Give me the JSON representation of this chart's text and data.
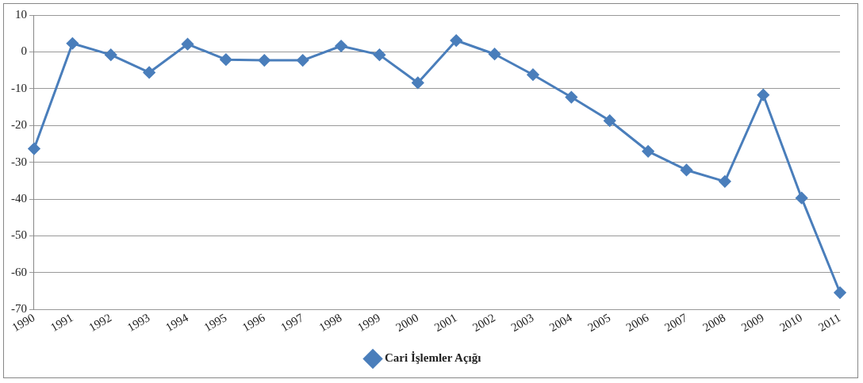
{
  "chart_data": {
    "type": "line",
    "categories": [
      "1990",
      "1991",
      "1992",
      "1993",
      "1994",
      "1995",
      "1996",
      "1997",
      "1998",
      "1999",
      "2000",
      "2001",
      "2002",
      "2003",
      "2004",
      "2005",
      "2006",
      "2007",
      "2008",
      "2009",
      "2010",
      "2011"
    ],
    "series": [
      {
        "name": "Cari İşlemler Açığı",
        "color": "#4a7ebb",
        "values": [
          -26.3,
          2.3,
          -0.8,
          -5.6,
          2.1,
          -2.1,
          -2.3,
          -2.3,
          1.6,
          -0.8,
          -8.4,
          3.1,
          -0.6,
          -6.2,
          -12.3,
          -18.7,
          -27.0,
          -32.1,
          -35.2,
          -11.7,
          -39.7,
          -65.4
        ]
      }
    ],
    "ylim": [
      -70,
      10
    ],
    "yticks": [
      -70,
      -60,
      -50,
      -40,
      -30,
      -20,
      -10,
      0,
      10
    ],
    "grid": "y",
    "legend": "bottom",
    "marker": "diamond",
    "line_style": "solid"
  }
}
